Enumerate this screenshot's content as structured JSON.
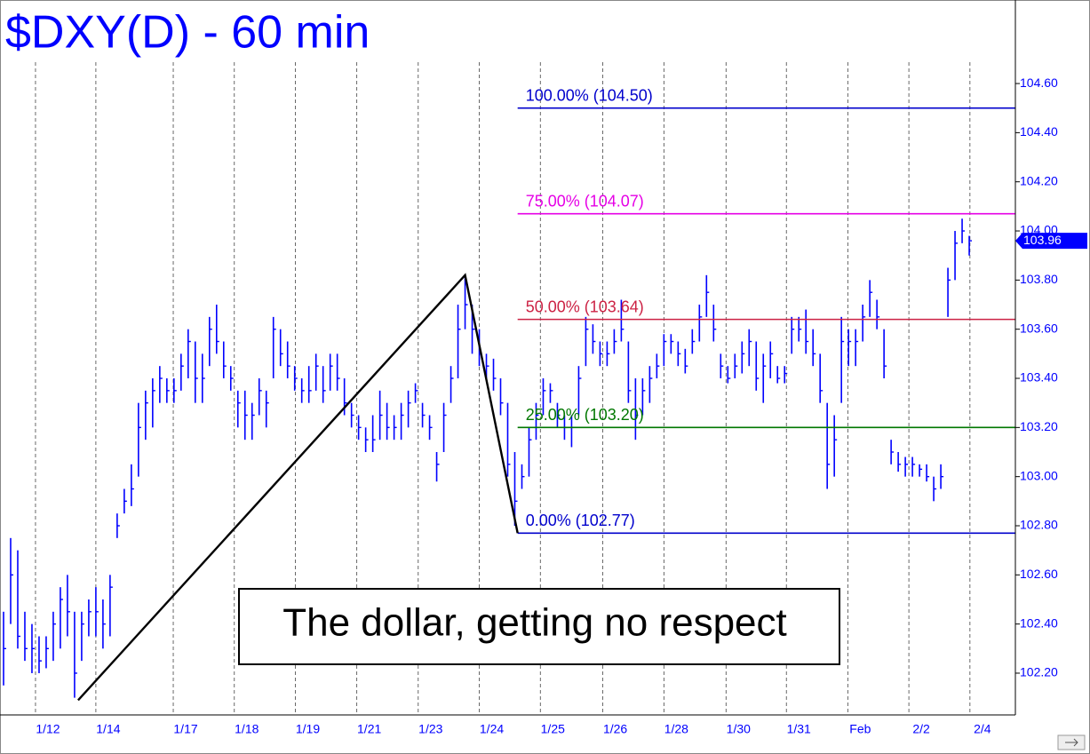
{
  "chart_data": {
    "type": "ohlc",
    "title": "$DXY(D) - 60 min",
    "annotation": "The dollar, getting no respect",
    "color": "#0000ff",
    "x": [
      0,
      1,
      2,
      3,
      4,
      5,
      6,
      7,
      8,
      9,
      10,
      11,
      12,
      13,
      14,
      15,
      16,
      17,
      18,
      19,
      20,
      21,
      22,
      23,
      24,
      25,
      26,
      27,
      28,
      29,
      30,
      31,
      32,
      33,
      34,
      35,
      36,
      37,
      38,
      39,
      40,
      41,
      42,
      43,
      44,
      45,
      46,
      47,
      48,
      49,
      50,
      51,
      52,
      53,
      54,
      55,
      56,
      57,
      58,
      59,
      60,
      61,
      62,
      63,
      64,
      65,
      66,
      67,
      68,
      69,
      70,
      71,
      72,
      73,
      74,
      75,
      76,
      77,
      78,
      79,
      80,
      81,
      82,
      83,
      84,
      85,
      86,
      87,
      88,
      89,
      90,
      91,
      92,
      93,
      94,
      95,
      96,
      97,
      98,
      99,
      100,
      101,
      102,
      103,
      104,
      105,
      106,
      107,
      108,
      109,
      110,
      111,
      112,
      113,
      114,
      115,
      116,
      117,
      118,
      119,
      120,
      121,
      122,
      123,
      124,
      125,
      126,
      127,
      128,
      129,
      130,
      131,
      132,
      133,
      134,
      135,
      136
    ],
    "high": [
      102.45,
      102.75,
      102.7,
      102.45,
      102.4,
      102.35,
      102.35,
      102.45,
      102.55,
      102.6,
      102.45,
      102.45,
      102.5,
      102.55,
      102.5,
      102.6,
      102.85,
      102.95,
      103.05,
      103.3,
      103.35,
      103.4,
      103.45,
      103.4,
      103.4,
      103.5,
      103.6,
      103.55,
      103.5,
      103.65,
      103.7,
      103.55,
      103.45,
      103.35,
      103.35,
      103.3,
      103.4,
      103.35,
      103.65,
      103.6,
      103.55,
      103.45,
      103.4,
      103.45,
      103.5,
      103.45,
      103.5,
      103.5,
      103.4,
      103.3,
      103.25,
      103.2,
      103.25,
      103.35,
      103.3,
      103.25,
      103.3,
      103.35,
      103.38,
      103.3,
      103.25,
      103.1,
      103.3,
      103.45,
      103.7,
      103.82,
      103.7,
      103.6,
      103.5,
      103.48,
      103.4,
      103.3,
      103.1,
      103.05,
      103.2,
      103.3,
      103.4,
      103.38,
      103.3,
      103.25,
      103.25,
      103.45,
      103.65,
      103.62,
      103.55,
      103.55,
      103.6,
      103.72,
      103.55,
      103.4,
      103.4,
      103.45,
      103.5,
      103.58,
      103.58,
      103.55,
      103.52,
      103.6,
      103.7,
      103.82,
      103.7,
      103.5,
      103.45,
      103.5,
      103.55,
      103.6,
      103.55,
      103.5,
      103.55,
      103.45,
      103.45,
      103.65,
      103.65,
      103.68,
      103.6,
      103.5,
      103.3,
      103.25,
      103.65,
      103.6,
      103.6,
      103.7,
      103.8,
      103.72,
      103.6,
      103.15,
      103.1,
      103.08,
      103.08,
      103.05,
      103.05,
      103.0,
      103.05,
      103.85,
      104.0,
      104.05,
      103.98
    ],
    "low": [
      102.15,
      102.4,
      102.3,
      102.25,
      102.2,
      102.2,
      102.22,
      102.25,
      102.3,
      102.35,
      102.1,
      102.25,
      102.35,
      102.35,
      102.3,
      102.35,
      102.75,
      102.85,
      102.88,
      103.0,
      103.15,
      103.2,
      103.3,
      103.3,
      103.3,
      103.35,
      103.4,
      103.3,
      103.3,
      103.45,
      103.5,
      103.4,
      103.35,
      103.2,
      103.15,
      103.15,
      103.25,
      103.2,
      103.4,
      103.45,
      103.4,
      103.35,
      103.3,
      103.3,
      103.35,
      103.3,
      103.35,
      103.35,
      103.25,
      103.2,
      103.15,
      103.1,
      103.1,
      103.15,
      103.15,
      103.15,
      103.15,
      103.2,
      103.3,
      103.2,
      103.15,
      102.98,
      103.1,
      103.3,
      103.4,
      103.6,
      103.5,
      103.45,
      103.4,
      103.35,
      103.25,
      103.0,
      102.8,
      102.95,
      103.0,
      103.15,
      103.25,
      103.3,
      103.2,
      103.15,
      103.12,
      103.25,
      103.45,
      103.5,
      103.45,
      103.45,
      103.5,
      103.55,
      103.3,
      103.15,
      103.25,
      103.3,
      103.4,
      103.45,
      103.5,
      103.45,
      103.42,
      103.5,
      103.55,
      103.65,
      103.55,
      103.4,
      103.38,
      103.4,
      103.42,
      103.45,
      103.35,
      103.3,
      103.4,
      103.38,
      103.38,
      103.5,
      103.55,
      103.5,
      103.45,
      103.3,
      102.95,
      103.0,
      103.3,
      103.45,
      103.45,
      103.55,
      103.65,
      103.6,
      103.4,
      103.05,
      103.02,
      103.0,
      103.0,
      103.0,
      102.98,
      102.9,
      102.95,
      103.65,
      103.8,
      103.95,
      103.9
    ],
    "close": [
      102.3,
      102.6,
      102.35,
      102.3,
      102.3,
      102.25,
      102.3,
      102.4,
      102.5,
      102.45,
      102.2,
      102.4,
      102.45,
      102.45,
      102.4,
      102.55,
      102.8,
      102.9,
      102.95,
      103.2,
      103.3,
      103.35,
      103.4,
      103.35,
      103.35,
      103.45,
      103.55,
      103.4,
      103.4,
      103.6,
      103.55,
      103.45,
      103.4,
      103.3,
      103.25,
      103.25,
      103.35,
      103.3,
      103.6,
      103.5,
      103.45,
      103.4,
      103.35,
      103.35,
      103.45,
      103.35,
      103.45,
      103.4,
      103.3,
      103.25,
      103.2,
      103.15,
      103.15,
      103.25,
      103.2,
      103.2,
      103.25,
      103.3,
      103.35,
      103.25,
      103.2,
      103.05,
      103.25,
      103.4,
      103.6,
      103.7,
      103.6,
      103.5,
      103.45,
      103.4,
      103.3,
      103.05,
      102.9,
      103.0,
      103.15,
      103.25,
      103.35,
      103.35,
      103.25,
      103.2,
      103.2,
      103.4,
      103.6,
      103.55,
      103.5,
      103.5,
      103.55,
      103.6,
      103.35,
      103.25,
      103.35,
      103.4,
      103.45,
      103.55,
      103.55,
      103.5,
      103.45,
      103.55,
      103.65,
      103.75,
      103.6,
      103.45,
      103.4,
      103.45,
      103.5,
      103.55,
      103.4,
      103.45,
      103.5,
      103.4,
      103.42,
      103.6,
      103.6,
      103.55,
      103.5,
      103.35,
      103.05,
      103.15,
      103.55,
      103.55,
      103.55,
      103.65,
      103.75,
      103.65,
      103.45,
      103.1,
      103.05,
      103.05,
      103.05,
      103.03,
      103.0,
      102.95,
      103.0,
      103.8,
      103.95,
      104.0,
      103.96
    ],
    "last_price": 103.96,
    "xlim": [
      -0.5,
      142.5
    ],
    "ylim": [
      102.03,
      104.94
    ],
    "yticks": [
      {
        "value": 102.2,
        "label": "102.20"
      },
      {
        "value": 102.4,
        "label": "102.40"
      },
      {
        "value": 102.6,
        "label": "102.60"
      },
      {
        "value": 102.8,
        "label": "102.80"
      },
      {
        "value": 103.0,
        "label": "103.00"
      },
      {
        "value": 103.2,
        "label": "103.20"
      },
      {
        "value": 103.4,
        "label": "103.40"
      },
      {
        "value": 103.6,
        "label": "103.60"
      },
      {
        "value": 103.8,
        "label": "103.80"
      },
      {
        "value": 104.0,
        "label": "104.00"
      },
      {
        "value": 104.2,
        "label": "104.20"
      },
      {
        "value": 104.4,
        "label": "104.40"
      },
      {
        "value": 104.6,
        "label": "104.60"
      }
    ],
    "xticks": [
      {
        "value": 4.5,
        "label": "1/12"
      },
      {
        "value": 13,
        "label": "1/14"
      },
      {
        "value": 23.9,
        "label": "1/17"
      },
      {
        "value": 32.5,
        "label": "1/18"
      },
      {
        "value": 41.1,
        "label": "1/19"
      },
      {
        "value": 49.75,
        "label": "1/21"
      },
      {
        "value": 58.4,
        "label": "1/23"
      },
      {
        "value": 67,
        "label": "1/24"
      },
      {
        "value": 75.6,
        "label": "1/25"
      },
      {
        "value": 84.4,
        "label": "1/26"
      },
      {
        "value": 93,
        "label": "1/28"
      },
      {
        "value": 101.75,
        "label": "1/30"
      },
      {
        "value": 110.25,
        "label": "1/31"
      },
      {
        "value": 118.9,
        "label": "Feb"
      },
      {
        "value": 127.5,
        "label": "2/2"
      },
      {
        "value": 136.1,
        "label": "2/4"
      }
    ],
    "fib_start": 72.4,
    "fib_levels": [
      {
        "label": "100.00% (104.50)",
        "value": 104.5,
        "color": "#0000cc"
      },
      {
        "label": "75.00% (104.07)",
        "value": 104.07,
        "color": "#e600e6"
      },
      {
        "label": "50.00% (103.64)",
        "value": 103.64,
        "color": "#cc2244"
      },
      {
        "label": "25.00% (103.20)",
        "value": 103.2,
        "color": "#007700"
      },
      {
        "label": "0.00% (102.77)",
        "value": 102.77,
        "color": "#0000cc"
      }
    ],
    "trendline": {
      "x": [
        10.5,
        65,
        72.4
      ],
      "values": [
        102.09,
        103.82,
        102.77
      ]
    }
  }
}
